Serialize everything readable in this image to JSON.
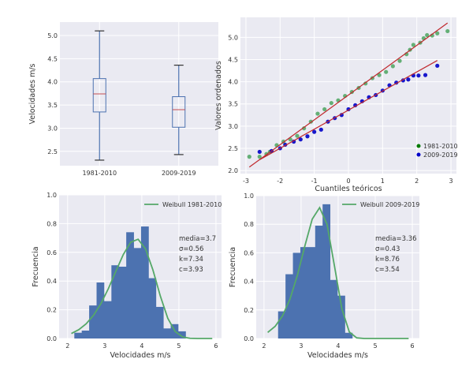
{
  "chart_data": [
    {
      "type": "box",
      "title": "",
      "ylabel": "Velocidades m/s",
      "categories": [
        "1981-2010",
        "2009-2019"
      ],
      "boxes": [
        {
          "name": "1981-2010",
          "whislo": 2.31,
          "q1": 3.35,
          "med": 3.74,
          "q3": 4.07,
          "whishi": 5.1
        },
        {
          "name": "2009-2019",
          "whislo": 2.43,
          "q1": 3.02,
          "med": 3.4,
          "q3": 3.68,
          "whishi": 4.36
        }
      ],
      "ylim": [
        2.19,
        5.29
      ],
      "yticks": [
        "2.5",
        "3.0",
        "3.5",
        "4.0",
        "4.5",
        "5.0"
      ],
      "grid": true,
      "colors": {
        "box": "#4c72b0",
        "median": "#c44e52"
      }
    },
    {
      "type": "scatter",
      "title": "",
      "xlabel": "Cuantiles teóricos",
      "ylabel": "Valores ordenados",
      "xlim": [
        -3.16,
        3.16
      ],
      "ylim": [
        1.93,
        5.45
      ],
      "xticks": [
        "-3",
        "-2",
        "-1",
        "0",
        "1",
        "2",
        "3"
      ],
      "yticks": [
        "2.0",
        "2.5",
        "3.0",
        "3.5",
        "4.0",
        "4.5",
        "5.0"
      ],
      "legend": {
        "placement": "bottom-right",
        "entries": [
          "1981-2010",
          "2009-2019"
        ]
      },
      "grid": true,
      "series": [
        {
          "name": "1981-2010",
          "color": "#55a868",
          "legend_color": "#007a00",
          "fit": {
            "slope": 0.56,
            "intercept": 3.7,
            "x": [
              -2.9,
              2.9
            ]
          },
          "x": [
            -2.9,
            -2.6,
            -2.4,
            -2.3,
            -2.1,
            -1.9,
            -1.7,
            -1.5,
            -1.3,
            -1.1,
            -0.9,
            -0.7,
            -0.5,
            -0.3,
            -0.1,
            0.1,
            0.3,
            0.5,
            0.7,
            0.9,
            1.1,
            1.3,
            1.5,
            1.7,
            1.8,
            1.9,
            2.1,
            2.2,
            2.3,
            2.45,
            2.6,
            2.9
          ],
          "y": [
            2.31,
            2.31,
            2.37,
            2.42,
            2.57,
            2.65,
            2.7,
            2.78,
            2.95,
            3.1,
            3.28,
            3.38,
            3.52,
            3.58,
            3.68,
            3.77,
            3.86,
            3.96,
            4.08,
            4.15,
            4.22,
            4.35,
            4.47,
            4.62,
            4.72,
            4.83,
            4.88,
            4.98,
            5.05,
            5.04,
            5.09,
            5.14
          ]
        },
        {
          "name": "2009-2019",
          "color": "#0000c8",
          "legend_color": "#0000c8",
          "fit": {
            "slope": 0.43,
            "intercept": 3.36,
            "x": [
              -2.6,
              2.6
            ]
          },
          "x": [
            -2.6,
            -2.25,
            -2.0,
            -1.85,
            -1.6,
            -1.4,
            -1.2,
            -1.0,
            -0.8,
            -0.6,
            -0.4,
            -0.2,
            0.0,
            0.2,
            0.4,
            0.6,
            0.8,
            1.0,
            1.2,
            1.4,
            1.6,
            1.75,
            1.9,
            2.05,
            2.25,
            2.6
          ],
          "y": [
            2.42,
            2.44,
            2.5,
            2.58,
            2.65,
            2.7,
            2.77,
            2.87,
            2.92,
            3.1,
            3.18,
            3.25,
            3.38,
            3.47,
            3.56,
            3.65,
            3.7,
            3.8,
            3.92,
            3.98,
            4.03,
            4.05,
            4.14,
            4.14,
            4.15,
            4.36
          ]
        }
      ],
      "fit_color": "#c0282d"
    },
    {
      "type": "bar",
      "title": "",
      "xlabel": "Velocidades m/s",
      "ylabel": "Frecuencia",
      "xlim": [
        1.77,
        6.15
      ],
      "ylim": [
        0,
        1.0
      ],
      "xticks": [
        "2",
        "3",
        "4",
        "5",
        "6"
      ],
      "yticks": [
        "0.0",
        "0.2",
        "0.4",
        "0.6",
        "0.8",
        "1.0"
      ],
      "bin_start": 2.18,
      "bin_width": 0.2,
      "values": [
        0.04,
        0.055,
        0.23,
        0.39,
        0.26,
        0.51,
        0.5,
        0.74,
        0.63,
        0.78,
        0.42,
        0.22,
        0.07,
        0.1,
        0.05
      ],
      "weibull": {
        "k": 7.34,
        "c": 3.93,
        "x_range": [
          2.1,
          5.9
        ]
      },
      "legend": {
        "placement": "top-right",
        "entries": [
          "Weibull 1981-2010"
        ]
      },
      "annotations": [
        "media=3.7",
        "σ=0.56",
        "k=7.34",
        "c=3.93"
      ],
      "grid": true
    },
    {
      "type": "bar",
      "title": "",
      "xlabel": "Velocidades m/s",
      "ylabel": "Frecuencia",
      "xlim": [
        1.79,
        6.19
      ],
      "ylim": [
        0,
        1.0
      ],
      "xticks": [
        "2",
        "3",
        "4",
        "5",
        "6"
      ],
      "yticks": [
        "0.0",
        "0.2",
        "0.4",
        "0.6",
        "0.8",
        "1.0"
      ],
      "bin_start": 2.38,
      "bin_width": 0.2,
      "values": [
        0.19,
        0.45,
        0.6,
        0.64,
        0.64,
        0.79,
        0.94,
        0.41,
        0.3,
        0.04
      ],
      "weibull": {
        "k": 8.76,
        "c": 3.54,
        "x_range": [
          2.1,
          5.9
        ]
      },
      "legend": {
        "placement": "top-right",
        "entries": [
          "Weibull 2009-2019"
        ]
      },
      "annotations": [
        "media=3.36",
        "σ=0.43",
        "k=8.76",
        "c=3.54"
      ],
      "grid": true
    }
  ],
  "colors": {
    "axes_bg": "#eaeaf2",
    "grid": "#ffffff",
    "bar": "#4c72b0",
    "weibull": "#55a868"
  }
}
